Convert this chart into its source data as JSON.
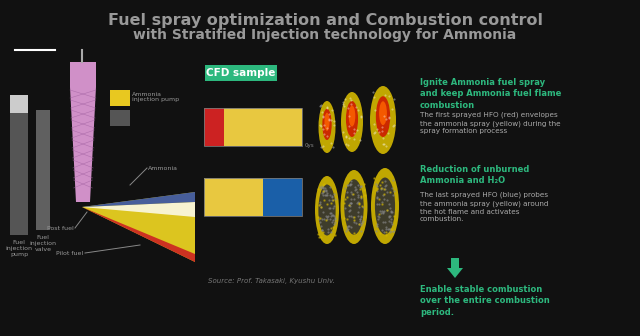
{
  "bg_color": "#111111",
  "title_line1": "Fuel spray optimization and Combustion control",
  "title_line2": "with Stratified Injection technology for Ammonia",
  "title_color": "#999999",
  "title_fontsize": 11.5,
  "subtitle_fontsize": 10,
  "cfd_label": "CFD sample",
  "cfd_bg": "#2db87e",
  "cfd_text_color": "#ffffff",
  "green_color": "#2db87e",
  "label1_bold": "Ignite Ammonia fuel spray\nand keep Ammonia fuel flame\ncombustion",
  "label1_body": "The first sprayed HFO (red) envelopes\nthe ammonia spray (yellow) during the\nspray formation process",
  "label2_bold": "Reduction of unburned\nAmmonia and H₂O",
  "label2_body": "The last sprayed HFO (blue) probes\nthe ammonia spray (yellow) around\nthe hot flame and activates\ncombustion.",
  "label3_bold": "Enable stable combustion\nover the entire combustion\nperiod.",
  "source_text": "Source: Prof. Takasaki, Kyushu Univ.",
  "white_line_color": "#ffffff",
  "bar1_colors": [
    "#cc2222",
    "#e8c840"
  ],
  "bar2_colors": [
    "#e8c840",
    "#1a5fa8"
  ]
}
